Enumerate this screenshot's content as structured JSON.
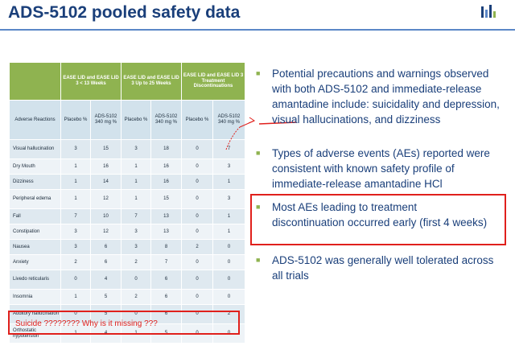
{
  "title": "ADS-5102 pooled safety data",
  "table": {
    "groups": [
      "EASE LID and EASE LID 3 < 13 Weeks",
      "EASE LID and EASE LID 3 Up to 25 Weeks",
      "EASE LID and EASE LID 3 Treatment Discontinuations"
    ],
    "sub_headers": [
      "Adverse Reactions",
      "Placebo %",
      "ADS-5102 340 mg %",
      "Placebo %",
      "ADS-5102 340 mg %",
      "Placebo %",
      "ADS-5102 340 mg %"
    ],
    "rows": [
      [
        "Visual hallucination",
        "3",
        "15",
        "3",
        "18",
        "0",
        "7"
      ],
      [
        "Dry Mouth",
        "1",
        "16",
        "1",
        "16",
        "0",
        "3"
      ],
      [
        "Dizziness",
        "1",
        "14",
        "1",
        "16",
        "0",
        "1"
      ],
      [
        "Peripheral edema",
        "1",
        "12",
        "1",
        "15",
        "0",
        "3"
      ],
      [
        "Fall",
        "7",
        "10",
        "7",
        "13",
        "0",
        "1"
      ],
      [
        "Constipation",
        "3",
        "12",
        "3",
        "13",
        "0",
        "1"
      ],
      [
        "Nausea",
        "3",
        "6",
        "3",
        "8",
        "2",
        "0"
      ],
      [
        "Anxiety",
        "2",
        "6",
        "2",
        "7",
        "0",
        "0"
      ],
      [
        "Livedo reticularis",
        "0",
        "4",
        "0",
        "6",
        "0",
        "0"
      ],
      [
        "Insomnia",
        "1",
        "5",
        "2",
        "6",
        "0",
        "0"
      ],
      [
        "Auditory hallucination",
        "0",
        "5",
        "0",
        "6",
        "0",
        "2"
      ],
      [
        "Orthostatic hypotension",
        "1",
        "4",
        "1",
        "5",
        "0",
        "0"
      ]
    ]
  },
  "note": "Suicide    ???????? Why is it missing ???",
  "bullets": [
    "Potential precautions and warnings observed with both ADS-5102 and immediate-release amantadine include: suicidality and depression, visual hallucinations, and dizziness",
    "Types of adverse events (AEs) reported were consistent with known safety profile of immediate-release amantadine HCl",
    "Most AEs leading to treatment discontinuation occurred early (first 4 weeks)",
    "ADS-5102 was generally well tolerated across all trials"
  ],
  "colors": {
    "title": "#1a3f7a",
    "table_header": "#8fb350",
    "annotation_red": "#e0201c"
  }
}
